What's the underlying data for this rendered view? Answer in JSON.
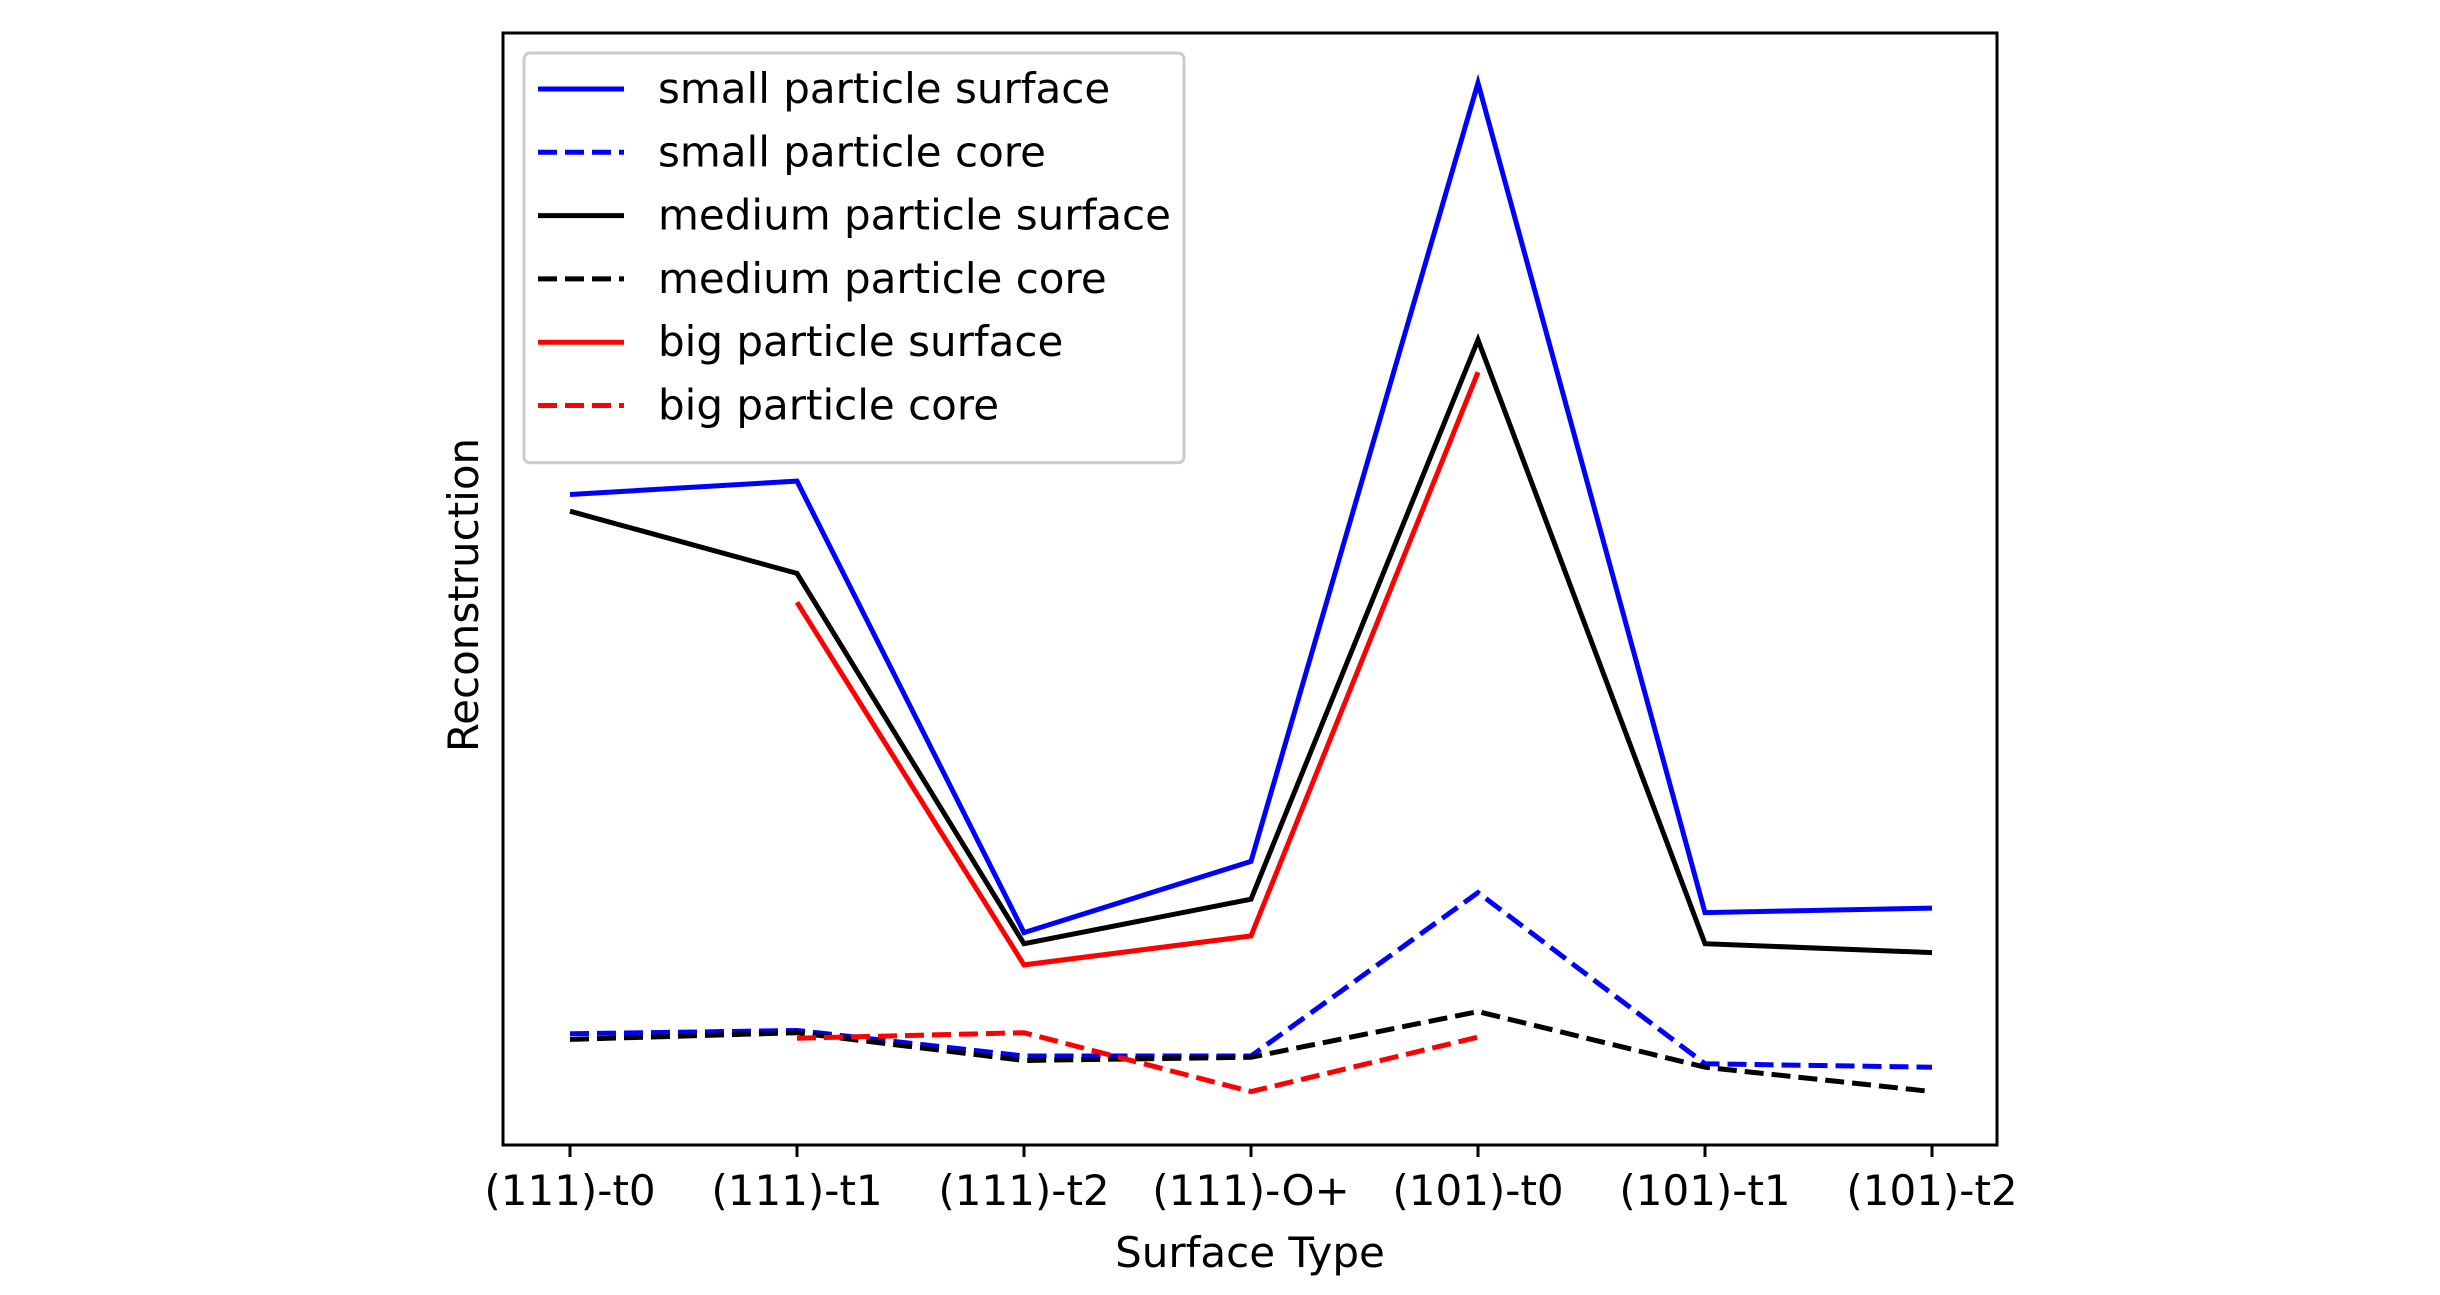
{
  "chart_data": {
    "type": "line",
    "title": "",
    "xlabel": "Surface Type",
    "ylabel": "Reconstruction",
    "categories": [
      "(111)-t0",
      "(111)-t1",
      "(111)-t2",
      "(111)-O+",
      "(101)-t0",
      "(101)-t1",
      "(101)-t2"
    ],
    "ylim": [
      0,
      1
    ],
    "y_ticks_shown": false,
    "grid": false,
    "legend_position": "top-left",
    "series": [
      {
        "name": "small particle surface",
        "color": "#0000ff",
        "dash": "solid",
        "values": [
          0.585,
          0.597,
          0.191,
          0.255,
          0.955,
          0.209,
          0.213
        ]
      },
      {
        "name": "small particle core",
        "color": "#0000ff",
        "dash": "dashed",
        "values": [
          0.1,
          0.103,
          0.08,
          0.08,
          0.227,
          0.073,
          0.07
        ]
      },
      {
        "name": "medium particle surface",
        "color": "#000000",
        "dash": "solid",
        "values": [
          0.57,
          0.514,
          0.181,
          0.221,
          0.724,
          0.181,
          0.173
        ]
      },
      {
        "name": "medium particle core",
        "color": "#000000",
        "dash": "dashed",
        "values": [
          0.095,
          0.101,
          0.076,
          0.079,
          0.12,
          0.07,
          0.048
        ]
      },
      {
        "name": "big particle surface",
        "color": "#ff0000",
        "dash": "solid",
        "values": [
          null,
          0.488,
          0.162,
          0.188,
          0.695,
          null,
          null
        ]
      },
      {
        "name": "big particle core",
        "color": "#ff0000",
        "dash": "dashed",
        "values": [
          null,
          0.096,
          0.101,
          0.048,
          0.097,
          null,
          null
        ]
      }
    ]
  }
}
